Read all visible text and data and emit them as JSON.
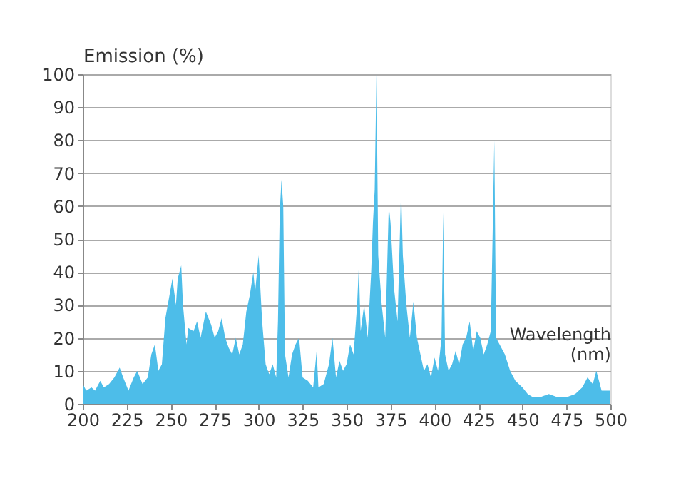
{
  "chart_data": {
    "type": "area",
    "ylabel": "Emission (%)",
    "xlabel": "Wavelength (nm)",
    "color": "#4dbde9",
    "x": [
      200,
      202,
      205,
      207,
      210,
      212,
      215,
      218,
      221,
      223,
      226,
      229,
      231,
      234,
      237,
      239,
      241,
      243,
      245,
      247,
      249,
      251,
      253,
      254,
      256,
      257,
      259,
      260,
      263,
      265,
      267,
      270,
      273,
      275,
      277,
      279,
      281,
      283,
      285,
      287,
      289,
      291,
      293,
      295,
      297,
      298,
      300,
      302,
      304,
      306,
      308,
      310,
      311,
      312,
      313,
      314,
      315,
      317,
      319,
      321,
      323,
      325,
      328,
      331,
      333,
      334,
      337,
      340,
      342,
      344,
      346,
      348,
      350,
      352,
      354,
      356,
      357,
      358,
      360,
      362,
      364,
      365,
      366,
      367,
      368,
      370,
      372,
      374,
      375,
      377,
      379,
      381,
      382,
      384,
      386,
      388,
      390,
      392,
      394,
      396,
      398,
      400,
      402,
      404,
      405,
      406,
      408,
      410,
      412,
      414,
      416,
      418,
      420,
      422,
      424,
      426,
      428,
      430,
      432,
      433,
      434,
      435,
      437,
      440,
      443,
      446,
      450,
      453,
      456,
      460,
      465,
      470,
      475,
      480,
      484,
      487,
      490,
      492,
      495,
      498,
      500
    ],
    "values": [
      6,
      4,
      5,
      4,
      7,
      5,
      6,
      8,
      11,
      8,
      4,
      8,
      10,
      6,
      8,
      15,
      18,
      10,
      12,
      26,
      32,
      38,
      30,
      38,
      42,
      30,
      18,
      23,
      22,
      25,
      20,
      28,
      24,
      20,
      22,
      26,
      20,
      17,
      15,
      20,
      15,
      18,
      28,
      33,
      40,
      34,
      45,
      25,
      12,
      9,
      12,
      8,
      25,
      58,
      68,
      60,
      15,
      8,
      15,
      18,
      20,
      8,
      7,
      5,
      16,
      5,
      6,
      12,
      20,
      8,
      13,
      10,
      12,
      18,
      15,
      30,
      42,
      22,
      30,
      20,
      40,
      55,
      65,
      100,
      45,
      30,
      20,
      60,
      55,
      35,
      25,
      65,
      45,
      30,
      20,
      31,
      20,
      15,
      10,
      12,
      8,
      14,
      10,
      20,
      58,
      15,
      10,
      12,
      16,
      12,
      18,
      20,
      25,
      16,
      22,
      20,
      15,
      18,
      22,
      50,
      80,
      20,
      18,
      15,
      10,
      7,
      5,
      3,
      2,
      2,
      3,
      2,
      2,
      3,
      5,
      8,
      6,
      10,
      4,
      4,
      4
    ],
    "xlim": [
      200,
      500
    ],
    "xticks": [
      200,
      225,
      250,
      275,
      300,
      325,
      350,
      375,
      400,
      425,
      450,
      475,
      500
    ],
    "ylim": [
      0,
      100
    ],
    "yticks": [
      0,
      10,
      20,
      30,
      40,
      50,
      60,
      70,
      80,
      90,
      100
    ],
    "grid": "y"
  }
}
